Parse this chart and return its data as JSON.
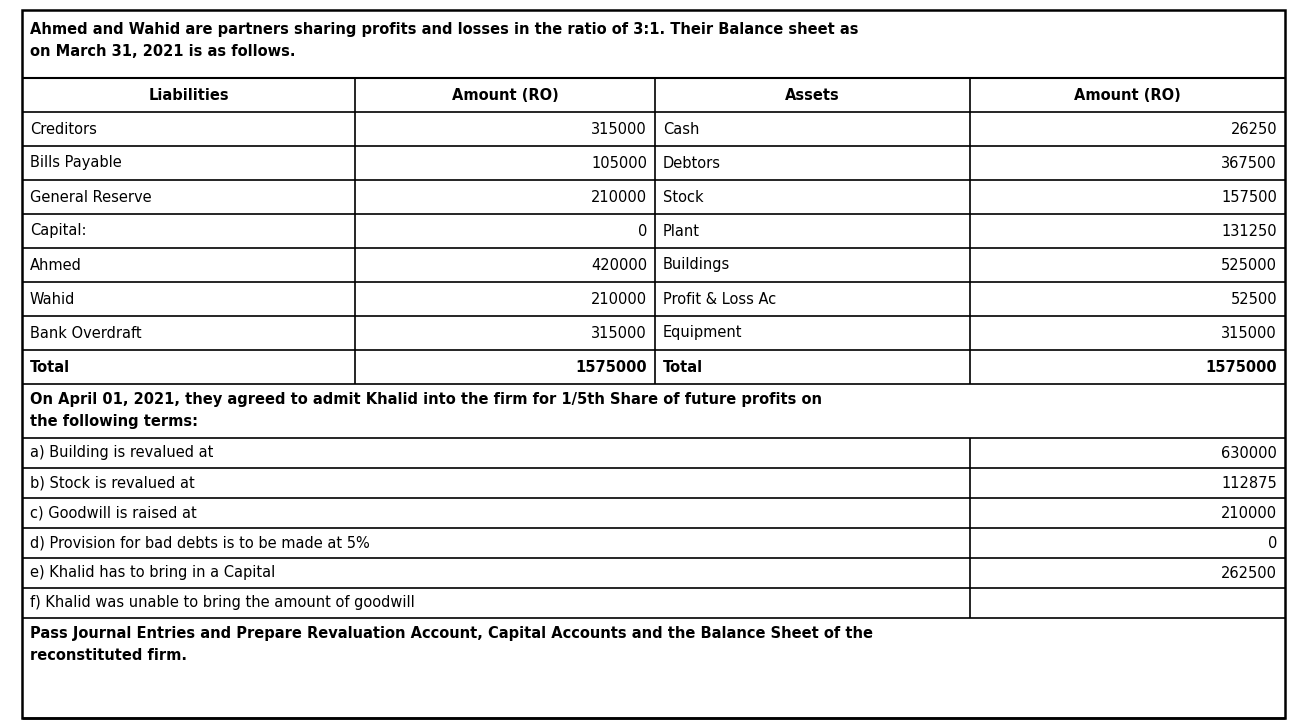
{
  "title_line1": "Ahmed and Wahid are partners sharing profits and losses in the ratio of 3:1. Their Balance sheet as",
  "title_line2": "on March 31, 2021 is as follows.",
  "header_liabilities": "Liabilities",
  "header_amount1": "Amount (RO)",
  "header_assets": "Assets",
  "header_amount2": "Amount (RO)",
  "balance_sheet_rows": [
    [
      "Creditors",
      "315000",
      "Cash",
      "26250"
    ],
    [
      "Bills Payable",
      "105000",
      "Debtors",
      "367500"
    ],
    [
      "General Reserve",
      "210000",
      "Stock",
      "157500"
    ],
    [
      "Capital:",
      "0",
      "Plant",
      "131250"
    ],
    [
      "Ahmed",
      "420000",
      "Buildings",
      "525000"
    ],
    [
      "Wahid",
      "210000",
      "Profit & Loss Ac",
      "52500"
    ],
    [
      "Bank Overdraft",
      "315000",
      "Equipment",
      "315000"
    ],
    [
      "Total",
      "1575000",
      "Total",
      "1575000"
    ]
  ],
  "middle_line1": "On April 01, 2021, they agreed to admit Khalid into the firm for 1/5th Share of future profits on",
  "middle_line2": "the following terms:",
  "terms_rows": [
    [
      "a) Building is revalued at",
      "630000"
    ],
    [
      "b) Stock is revalued at",
      "112875"
    ],
    [
      "c) Goodwill is raised at",
      "210000"
    ],
    [
      "d) Provision for bad debts is to be made at 5%",
      "0"
    ],
    [
      "e) Khalid has to bring in a Capital",
      "262500"
    ],
    [
      "f) Khalid was unable to bring the amount of goodwill",
      ""
    ]
  ],
  "footer_line1": "Pass Journal Entries and Prepare Revaluation Account, Capital Accounts and the Balance Sheet of the",
  "footer_line2": "reconstituted firm.",
  "bg_color": "#ffffff",
  "border_color": "#000000",
  "text_color": "#000000",
  "figwidth": 13.07,
  "figheight": 7.28,
  "dpi": 100
}
